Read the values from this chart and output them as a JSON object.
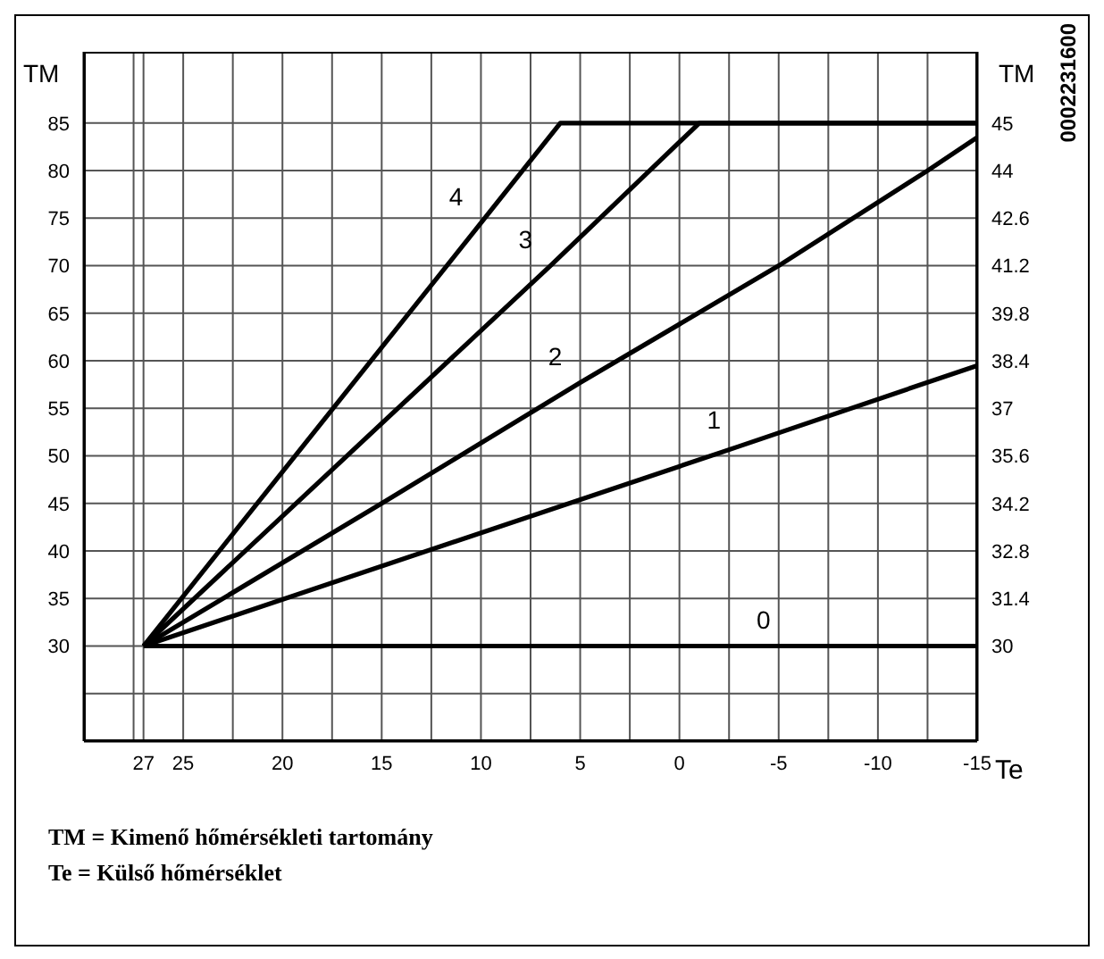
{
  "chart_data": {
    "type": "line",
    "xlabel": "Te",
    "ylabel": "TM",
    "y2label": "TM",
    "annotations": [
      "0002231600",
      "TM = Kimenő hőmérsékleti tartomány",
      "Te = Külső hőmérséklet"
    ],
    "xlim": [
      30,
      -15
    ],
    "xticks": [
      {
        "value": 27.5,
        "label": null
      },
      27,
      25,
      {
        "value": 22.5,
        "label": null
      },
      20,
      {
        "value": 17.5,
        "label": null
      },
      15,
      {
        "value": 12.5,
        "label": null
      },
      10,
      {
        "value": 7.5,
        "label": null
      },
      5,
      {
        "value": 2.5,
        "label": null
      },
      0,
      {
        "value": -2.5,
        "label": null
      },
      -5,
      {
        "value": -7.5,
        "label": null
      },
      -10,
      {
        "value": -12.5,
        "label": null
      },
      -15
    ],
    "ylim": [
      20,
      92.5
    ],
    "yticks": [
      {
        "value": 25,
        "label": null
      },
      30,
      35,
      40,
      45,
      50,
      55,
      60,
      65,
      70,
      75,
      80,
      85
    ],
    "y2lim": [
      27.2,
      47.5
    ],
    "y2ticks": [
      30,
      31.4,
      32.8,
      34.2,
      35.6,
      37,
      38.4,
      39.8,
      41.2,
      42.6,
      44,
      {
        "value": 45.4,
        "label": "45"
      }
    ],
    "grid": true,
    "marker": "none",
    "line_style": "solid",
    "series": [
      {
        "name": "0",
        "color": "#000000",
        "x": [
          27,
          -5.5,
          -15
        ],
        "values": [
          30,
          30,
          30
        ]
      },
      {
        "name": "1",
        "color": "#000000",
        "x": [
          27,
          -3,
          -15
        ],
        "values": [
          30,
          51,
          59.5
        ]
      },
      {
        "name": "2",
        "color": "#000000",
        "x": [
          27,
          15,
          5,
          -5,
          -12.5,
          -15
        ],
        "values": [
          30,
          45,
          57.7,
          70,
          80,
          83.5
        ]
      },
      {
        "name": "3",
        "color": "#000000",
        "x": [
          27,
          6.5,
          -1,
          -15
        ],
        "values": [
          30,
          70,
          85,
          85
        ]
      },
      {
        "name": "4",
        "color": "#000000",
        "x": [
          27,
          10,
          6,
          -15
        ],
        "values": [
          30,
          74.5,
          85,
          85
        ]
      }
    ]
  }
}
